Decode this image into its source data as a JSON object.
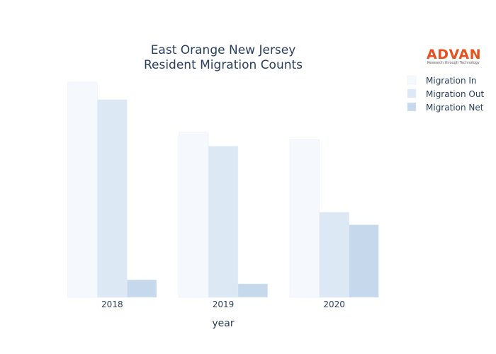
{
  "logo": {
    "name": "ADVAN",
    "tagline": "Research through Technology"
  },
  "chart_data": {
    "type": "bar",
    "title_lines": [
      "East Orange New Jersey",
      "Resident Migration Counts"
    ],
    "xlabel": "year",
    "ylabel": "",
    "categories": [
      "2018",
      "2019",
      "2020"
    ],
    "ylim": [
      0,
      4300
    ],
    "grid": false,
    "y_ticks_visible": false,
    "legend_position": "top-right",
    "series": [
      {
        "name": "Migration In",
        "values": [
          4300,
          3300,
          3150
        ],
        "color": "#f5f9fd"
      },
      {
        "name": "Migration Out",
        "values": [
          3950,
          3020,
          1700
        ],
        "color": "#dde8f5"
      },
      {
        "name": "Migration Net",
        "values": [
          350,
          270,
          1450
        ],
        "color": "#c6d9ec"
      }
    ]
  }
}
